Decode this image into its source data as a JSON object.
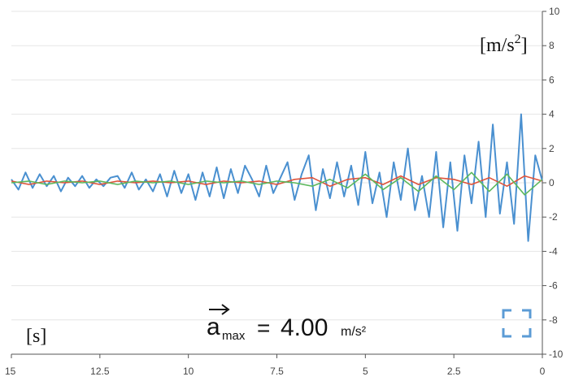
{
  "chart_data": {
    "type": "line",
    "xlabel": "[s]",
    "ylabel_base": "[m/s",
    "ylabel_exp": "2",
    "ylabel_close": "]",
    "xlim": [
      15,
      0
    ],
    "ylim": [
      -10,
      10
    ],
    "x_ticks": [
      15,
      12.5,
      10,
      7.5,
      5,
      2.5,
      0
    ],
    "x_tick_labels": [
      "15",
      "12.5",
      "10",
      "7.5",
      "5",
      "2.5",
      "0"
    ],
    "y_ticks": [
      10,
      8,
      6,
      4,
      2,
      0,
      -2,
      -4,
      -6,
      -8,
      -10
    ],
    "y_tick_labels": [
      "10",
      "8",
      "6",
      "4",
      "2",
      "0",
      "-2",
      "-4",
      "-6",
      "-8",
      "-10"
    ],
    "grid": true,
    "annotation": {
      "symbol": "a",
      "subscript": "max",
      "equals": "=",
      "value": "4.00",
      "unit": "m/s²"
    },
    "fullscreen_icon": "fullscreen-icon",
    "colors": {
      "series_blue": "#4a90d0",
      "series_red": "#e0533a",
      "series_green": "#5cb85c",
      "grid": "#e6e6e6",
      "icon": "#5b9bd5"
    },
    "series": [
      {
        "color": "#4a90d0",
        "x": [
          15.0,
          14.8,
          14.6,
          14.4,
          14.2,
          14.0,
          13.8,
          13.6,
          13.4,
          13.2,
          13.0,
          12.8,
          12.6,
          12.4,
          12.2,
          12.0,
          11.8,
          11.6,
          11.4,
          11.2,
          11.0,
          10.8,
          10.6,
          10.4,
          10.2,
          10.0,
          9.8,
          9.6,
          9.4,
          9.2,
          9.0,
          8.8,
          8.6,
          8.4,
          8.2,
          8.0,
          7.8,
          7.6,
          7.4,
          7.2,
          7.0,
          6.8,
          6.6,
          6.4,
          6.2,
          6.0,
          5.8,
          5.6,
          5.4,
          5.2,
          5.0,
          4.8,
          4.6,
          4.4,
          4.2,
          4.0,
          3.8,
          3.6,
          3.4,
          3.2,
          3.0,
          2.8,
          2.6,
          2.4,
          2.2,
          2.0,
          1.8,
          1.6,
          1.4,
          1.2,
          1.0,
          0.8,
          0.6,
          0.4,
          0.2,
          0.0
        ],
        "y": [
          0.2,
          -0.4,
          0.6,
          -0.3,
          0.5,
          -0.2,
          0.4,
          -0.5,
          0.3,
          -0.2,
          0.4,
          -0.3,
          0.2,
          -0.2,
          0.3,
          0.4,
          -0.3,
          0.6,
          -0.4,
          0.2,
          -0.5,
          0.5,
          -0.8,
          0.7,
          -0.6,
          0.5,
          -1.0,
          0.6,
          -0.8,
          0.9,
          -0.9,
          0.8,
          -0.6,
          1.0,
          0.2,
          -0.8,
          1.0,
          -0.6,
          0.3,
          1.2,
          -1.0,
          0.5,
          1.6,
          -1.6,
          0.8,
          -0.9,
          1.2,
          -0.8,
          1.0,
          -1.3,
          1.8,
          -1.2,
          0.6,
          -2.0,
          1.2,
          -1.0,
          2.0,
          -1.6,
          0.4,
          -2.0,
          1.8,
          -2.6,
          1.2,
          -2.8,
          1.6,
          -1.2,
          2.4,
          -2.0,
          3.4,
          -1.8,
          1.2,
          -2.4,
          4.0,
          -3.4,
          1.6,
          0.1
        ]
      },
      {
        "color": "#e0533a",
        "x": [
          15.0,
          14.5,
          14.0,
          13.5,
          13.0,
          12.5,
          12.0,
          11.5,
          11.0,
          10.5,
          10.0,
          9.5,
          9.0,
          8.5,
          8.0,
          7.5,
          7.0,
          6.5,
          6.0,
          5.5,
          5.0,
          4.5,
          4.0,
          3.5,
          3.0,
          2.5,
          2.0,
          1.5,
          1.0,
          0.5,
          0.0
        ],
        "y": [
          0.1,
          -0.1,
          0.1,
          0.0,
          0.1,
          -0.1,
          0.1,
          0.0,
          0.1,
          0.0,
          0.1,
          -0.1,
          0.1,
          0.0,
          0.1,
          -0.1,
          0.2,
          0.3,
          -0.2,
          0.2,
          0.3,
          -0.1,
          0.4,
          -0.1,
          0.3,
          0.2,
          -0.1,
          0.3,
          -0.2,
          0.4,
          0.1
        ]
      },
      {
        "color": "#5cb85c",
        "x": [
          15.0,
          14.5,
          14.0,
          13.5,
          13.0,
          12.5,
          12.0,
          11.5,
          11.0,
          10.5,
          10.0,
          9.5,
          9.0,
          8.5,
          8.0,
          7.5,
          7.0,
          6.5,
          6.0,
          5.5,
          5.0,
          4.5,
          4.0,
          3.5,
          3.0,
          2.5,
          2.0,
          1.5,
          1.0,
          0.5,
          0.0
        ],
        "y": [
          0.0,
          0.1,
          -0.1,
          0.1,
          0.0,
          0.1,
          -0.1,
          0.1,
          0.0,
          0.1,
          -0.1,
          0.1,
          0.0,
          0.1,
          -0.1,
          0.1,
          0.0,
          -0.2,
          0.2,
          -0.3,
          0.5,
          -0.4,
          0.3,
          -0.5,
          0.4,
          -0.4,
          0.6,
          -0.5,
          0.5,
          -0.7,
          0.2
        ]
      }
    ]
  }
}
